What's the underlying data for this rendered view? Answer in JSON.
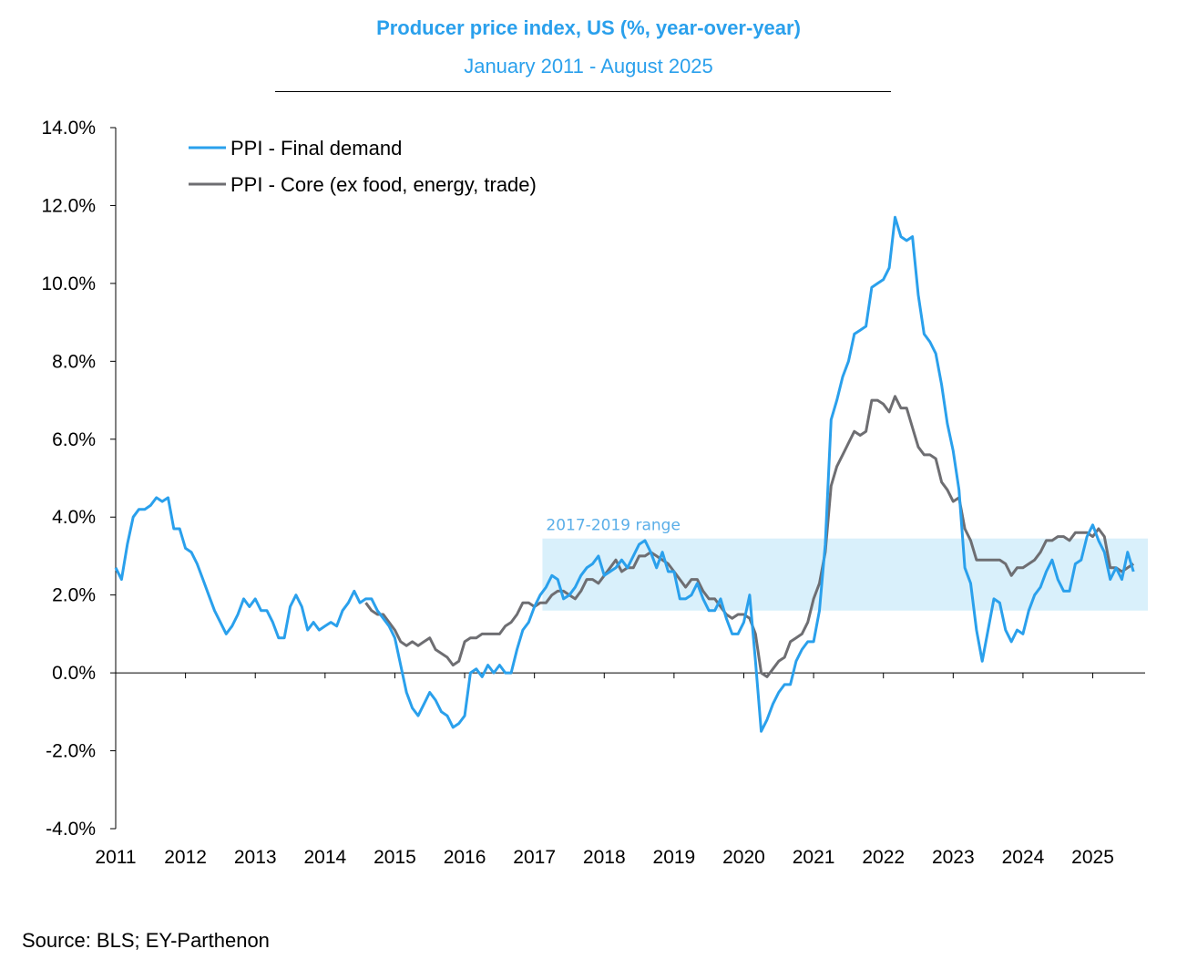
{
  "title": "Producer price index, US (%,  year-over-year)",
  "subtitle": "January 2011 - August 2025",
  "source": "Source: BLS; EY-Parthenon",
  "colors": {
    "final": "#2aa0ec",
    "core": "#6e6e72",
    "band": "#d9f0fb",
    "title": "#2aa0ec"
  },
  "chart_data": {
    "type": "line",
    "title": "Producer price index, US (%,  year-over-year)",
    "subtitle": "January 2011 - August 2025",
    "xlabel": "",
    "ylabel": "",
    "x_ticks": [
      "2011",
      "2012",
      "2013",
      "2014",
      "2015",
      "2016",
      "2017",
      "2018",
      "2019",
      "2020",
      "2021",
      "2022",
      "2023",
      "2024",
      "2025"
    ],
    "y_ticks": [
      "14.0%",
      "12.0%",
      "10.0%",
      "8.0%",
      "6.0%",
      "4.0%",
      "2.0%",
      "0.0%",
      "-2.0%",
      "-4.0%"
    ],
    "ylim": [
      -4,
      14
    ],
    "grid": false,
    "legend": "top-left",
    "band": {
      "label": "2017-2019 range",
      "from": 1.6,
      "to": 3.45,
      "x_start": "2017-03",
      "x_end": "2025-08"
    },
    "series": [
      {
        "name": "PPI - Final demand",
        "start": "2011-01",
        "values": [
          2.7,
          2.4,
          3.3,
          4.0,
          4.2,
          4.2,
          4.3,
          4.5,
          4.4,
          4.5,
          3.7,
          3.7,
          3.2,
          3.1,
          2.8,
          2.4,
          2.0,
          1.6,
          1.3,
          1.0,
          1.2,
          1.5,
          1.9,
          1.7,
          1.9,
          1.6,
          1.6,
          1.3,
          0.9,
          0.9,
          1.7,
          2.0,
          1.7,
          1.1,
          1.3,
          1.1,
          1.2,
          1.3,
          1.2,
          1.6,
          1.8,
          2.1,
          1.8,
          1.9,
          1.9,
          1.6,
          1.4,
          1.2,
          0.9,
          0.2,
          -0.5,
          -0.9,
          -1.1,
          -0.8,
          -0.5,
          -0.7,
          -1.0,
          -1.1,
          -1.4,
          -1.3,
          -1.1,
          0.0,
          0.1,
          -0.1,
          0.2,
          0.0,
          0.2,
          0.0,
          0.0,
          0.6,
          1.1,
          1.3,
          1.7,
          2.0,
          2.2,
          2.5,
          2.4,
          1.9,
          2.0,
          2.2,
          2.5,
          2.7,
          2.8,
          3.0,
          2.5,
          2.6,
          2.7,
          2.9,
          2.7,
          3.0,
          3.3,
          3.4,
          3.1,
          2.7,
          3.1,
          2.6,
          2.6,
          1.9,
          1.9,
          2.0,
          2.3,
          1.9,
          1.6,
          1.6,
          1.9,
          1.4,
          1.0,
          1.0,
          1.3,
          2.0,
          0.3,
          -1.5,
          -1.2,
          -0.8,
          -0.5,
          -0.3,
          -0.3,
          0.3,
          0.6,
          0.8,
          0.8,
          1.6,
          3.3,
          6.5,
          7.0,
          7.6,
          8.0,
          8.7,
          8.8,
          8.9,
          9.9,
          10.0,
          10.1,
          10.4,
          11.7,
          11.2,
          11.1,
          11.2,
          9.7,
          8.7,
          8.5,
          8.2,
          7.4,
          6.4,
          5.7,
          4.7,
          2.7,
          2.3,
          1.1,
          0.3,
          1.1,
          1.9,
          1.8,
          1.1,
          0.8,
          1.1,
          1.0,
          1.6,
          2.0,
          2.2,
          2.6,
          2.9,
          2.4,
          2.1,
          2.1,
          2.8,
          2.9,
          3.5,
          3.8,
          3.4,
          3.1,
          2.4,
          2.7,
          2.4,
          3.1,
          2.6
        ]
      },
      {
        "name": "PPI - Core (ex food, energy, trade)",
        "start": "2014-08",
        "values": [
          1.8,
          1.6,
          1.5,
          1.5,
          1.3,
          1.1,
          0.8,
          0.7,
          0.8,
          0.7,
          0.8,
          0.9,
          0.6,
          0.5,
          0.4,
          0.2,
          0.3,
          0.8,
          0.9,
          0.9,
          1.0,
          1.0,
          1.0,
          1.0,
          1.2,
          1.3,
          1.5,
          1.8,
          1.8,
          1.7,
          1.8,
          1.8,
          2.0,
          2.1,
          2.1,
          2.0,
          1.9,
          2.1,
          2.4,
          2.4,
          2.3,
          2.5,
          2.7,
          2.9,
          2.6,
          2.7,
          2.7,
          3.0,
          3.0,
          3.1,
          3.0,
          2.9,
          2.8,
          2.6,
          2.4,
          2.2,
          2.4,
          2.4,
          2.1,
          1.9,
          1.9,
          1.7,
          1.5,
          1.4,
          1.5,
          1.5,
          1.4,
          1.0,
          0.0,
          -0.1,
          0.1,
          0.3,
          0.4,
          0.8,
          0.9,
          1.0,
          1.3,
          1.9,
          2.3,
          3.1,
          4.8,
          5.3,
          5.6,
          5.9,
          6.2,
          6.1,
          6.2,
          7.0,
          7.0,
          6.9,
          6.7,
          7.1,
          6.8,
          6.8,
          6.3,
          5.8,
          5.6,
          5.6,
          5.5,
          4.9,
          4.7,
          4.4,
          4.5,
          3.7,
          3.4,
          2.9,
          2.9,
          2.9,
          2.9,
          2.9,
          2.8,
          2.5,
          2.7,
          2.7,
          2.8,
          2.9,
          3.1,
          3.4,
          3.4,
          3.5,
          3.5,
          3.4,
          3.6,
          3.6,
          3.6,
          3.5,
          3.7,
          3.5,
          2.7,
          2.7,
          2.6,
          2.7,
          2.8
        ]
      }
    ]
  }
}
